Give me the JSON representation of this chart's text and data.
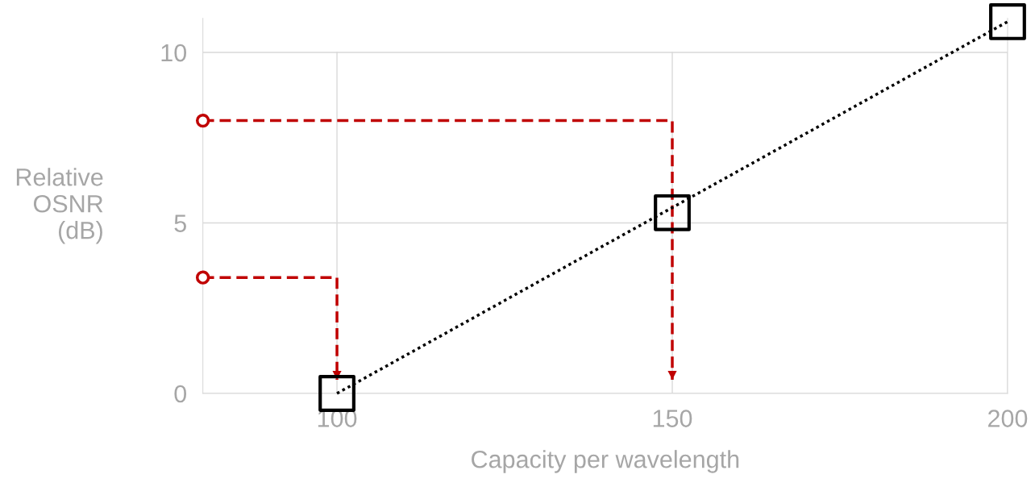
{
  "chart_data": {
    "type": "scatter",
    "xlabel": "Capacity per wavelength",
    "ylabel": "Relative\nOSNR\n(dB)",
    "xlim": [
      80,
      200
    ],
    "xticks": [
      100,
      150,
      200
    ],
    "ylim": [
      0,
      11
    ],
    "yticks": [
      0,
      5,
      10
    ],
    "grid": true,
    "legend": false,
    "series": [
      {
        "type": "line",
        "color": "#c00000",
        "x": [
          80,
          150,
          150
        ],
        "values": [
          8,
          8,
          0.4
        ],
        "line_style": "dashed",
        "marker": "none"
      },
      {
        "type": "line",
        "color": "#c00000",
        "x": [
          80,
          100,
          100
        ],
        "values": [
          3.4,
          3.4,
          0.4
        ],
        "line_style": "dashed",
        "marker": "none"
      },
      {
        "color": "#c00000",
        "x": [
          80,
          80
        ],
        "values": [
          8,
          3.4
        ],
        "marker": "circle"
      },
      {
        "type": "line",
        "color": "#000000",
        "x": [
          100,
          200
        ],
        "values": [
          0,
          10.9
        ],
        "line_style": "dotted",
        "marker": "none"
      },
      {
        "color": "#000000",
        "x": [
          100,
          150,
          200
        ],
        "values": [
          0,
          5.3,
          10.9
        ],
        "marker": "square"
      }
    ]
  }
}
